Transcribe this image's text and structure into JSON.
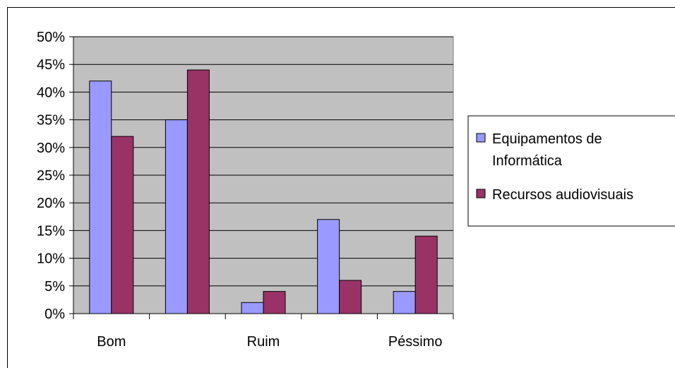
{
  "chart_data": {
    "type": "bar",
    "categories": [
      "Bom",
      "",
      "Ruim",
      "",
      "Péssimo"
    ],
    "series": [
      {
        "name": "Equipamentos de Informática",
        "legend_lines": [
          "Equipamentos de",
          "Informática"
        ],
        "values": [
          0.42,
          0.35,
          0.02,
          0.17,
          0.04
        ],
        "color": "#9999ff"
      },
      {
        "name": "Recursos audiovisuais",
        "legend_lines": [
          "Recursos audiovisuais"
        ],
        "values": [
          0.32,
          0.44,
          0.04,
          0.06,
          0.14
        ],
        "color": "#993366"
      }
    ],
    "yticks": [
      "0%",
      "5%",
      "10%",
      "15%",
      "20%",
      "25%",
      "30%",
      "35%",
      "40%",
      "45%",
      "50%"
    ],
    "ylim": [
      0,
      0.5
    ],
    "ystep": 0.05,
    "grid": true,
    "plot_background": "#c0c0c0",
    "legend_position": "right"
  }
}
